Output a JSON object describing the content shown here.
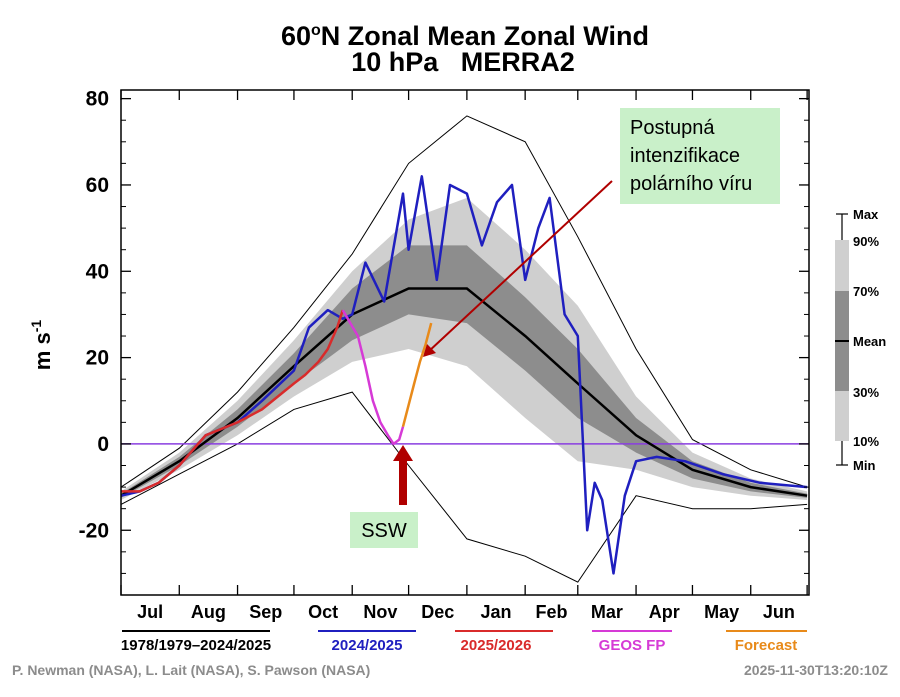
{
  "title": {
    "line1_pre": "60",
    "line1_sup": "o",
    "line1_post": "N Zonal Mean Zonal Wind",
    "line2": "10 hPa   MERRA2"
  },
  "colors": {
    "record": "#000000",
    "y2024": "#1f1fbf",
    "y2026": "#d92b2b",
    "geos": "#d63ad6",
    "forecast": "#e88a1a",
    "zero": "#8a3ee0",
    "band_outer": "#cfcfcf",
    "band_inner": "#8d8d8d",
    "arrow": "#b00000",
    "annot_bg": "#c9f0c9"
  },
  "chart_data": {
    "type": "line",
    "title": "60oN Zonal Mean Zonal Wind 10 hPa MERRA2",
    "xlabel": "",
    "ylabel_main": "m s",
    "ylabel_sup": "-1",
    "xlim": [
      0,
      366
    ],
    "ylim": [
      -35,
      82
    ],
    "yticks": [
      80,
      60,
      40,
      20,
      0,
      -20
    ],
    "ytick_labels": [
      "80",
      "60",
      "40",
      "20",
      "0",
      "-20"
    ],
    "months": [
      "Jul",
      "Aug",
      "Sep",
      "Oct",
      "Nov",
      "Dec",
      "Jan",
      "Feb",
      "Mar",
      "Apr",
      "May",
      "Jun"
    ],
    "zero_line": 0,
    "climatology": {
      "x": [
        0,
        31,
        62,
        92,
        123,
        153,
        184,
        215,
        243,
        274,
        304,
        335,
        365
      ],
      "mean": [
        -12,
        -4,
        6,
        18,
        30,
        36,
        36,
        25,
        14,
        2,
        -6,
        -10,
        -12
      ],
      "p30": [
        -12.5,
        -5,
        4,
        14,
        24,
        30,
        28,
        17,
        6,
        -2,
        -8,
        -11,
        -12.5
      ],
      "p70": [
        -11.5,
        -3,
        8,
        21,
        36,
        46,
        46,
        34,
        22,
        6,
        -4,
        -9,
        -11.5
      ],
      "p10": [
        -13,
        -6,
        2,
        11,
        19,
        22,
        18,
        6,
        -4,
        -6,
        -10,
        -12,
        -13
      ],
      "p90": [
        -11,
        -2,
        10,
        24,
        40,
        52,
        57,
        45,
        32,
        11,
        -2,
        -8,
        -11
      ],
      "min": [
        -14,
        -7,
        0,
        8,
        12,
        -5,
        -22,
        -26,
        -32,
        -12,
        -15,
        -15,
        -14
      ],
      "max": [
        -10,
        -1,
        12,
        27,
        44,
        65,
        76,
        70,
        48,
        22,
        1,
        -6,
        -10
      ]
    },
    "series": [
      {
        "name": "2024/2025",
        "x": [
          0,
          10,
          20,
          31,
          45,
          62,
          75,
          92,
          100,
          110,
          118,
          123,
          130,
          140,
          150,
          153,
          160,
          168,
          175,
          184,
          192,
          200,
          208,
          215,
          222,
          228,
          236,
          243,
          248,
          252,
          256,
          262,
          268,
          274,
          285,
          300,
          320,
          340,
          365
        ],
        "values": [
          -12,
          -11,
          -9,
          -5,
          2,
          5,
          10,
          17,
          27,
          31,
          29,
          30,
          42,
          33,
          58,
          45,
          62,
          38,
          60,
          58,
          46,
          56,
          60,
          38,
          50,
          57,
          30,
          25,
          -20,
          -9,
          -13,
          -30,
          -12,
          -4,
          -3,
          -4,
          -7,
          -9,
          -10
        ]
      },
      {
        "name": "2025/2026",
        "x": [
          0,
          10,
          20,
          31,
          45,
          62,
          75,
          92,
          98,
          105,
          110,
          115,
          118
        ],
        "values": [
          -11,
          -11,
          -9,
          -5,
          2,
          5,
          8,
          14,
          16,
          19,
          22,
          27,
          31
        ]
      },
      {
        "name": "GEOS FP",
        "x": [
          118,
          122,
          126,
          130,
          134,
          138,
          142,
          145,
          148,
          150
        ],
        "values": [
          31,
          28,
          25,
          18,
          10,
          5,
          2,
          0,
          1,
          4
        ]
      },
      {
        "name": "Forecast",
        "x": [
          150,
          153,
          156,
          159,
          162,
          165
        ],
        "values": [
          4,
          9,
          14,
          19,
          23,
          28
        ]
      }
    ],
    "right_key": {
      "labels": [
        "Max",
        "90%",
        "70%",
        "Mean",
        "30%",
        "10%",
        "Min"
      ]
    },
    "annotation_ssw": {
      "label": "SSW",
      "day": 148
    },
    "annotation_vortex": {
      "lines": [
        "Postupná",
        "intenzifikace",
        "polárního víru"
      ]
    },
    "legend": {
      "record_label": "1978/1979–2024/2025",
      "y2024_label": "2024/2025",
      "y2026_label": "2025/2026",
      "geos_label": "GEOS FP",
      "forecast_label": "Forecast"
    }
  },
  "footer": {
    "credit": "P. Newman (NASA), L. Lait (NASA), S. Pawson (NASA)",
    "timestamp": "2025-11-30T13:20:10Z"
  }
}
